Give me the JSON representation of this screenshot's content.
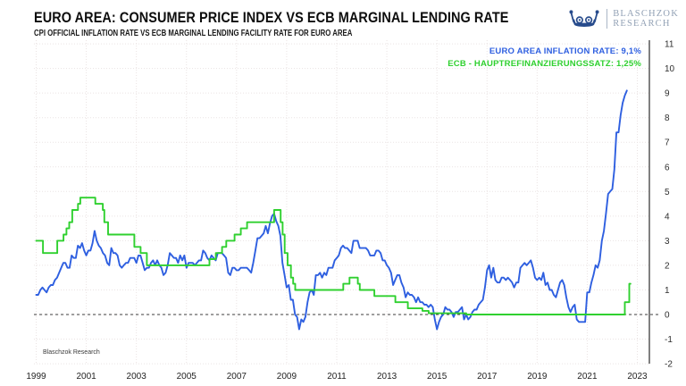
{
  "header": {
    "title": "EURO AREA: CONSUMER PRICE INDEX VS ECB MARGINAL LENDING RATE",
    "subtitle": "CPI OFFICIAL INFLATION RATE VS ECB MARGINAL LENDING FACILITY RATE FOR EURO AREA"
  },
  "logo": {
    "name_line1": "BLASCHZOK",
    "name_line2": "RESEARCH",
    "icon_color": "#274b8c"
  },
  "legend": [
    {
      "label": "EURO AREA INFLATION RATE: 9,1%",
      "color": "#2e5fe0"
    },
    {
      "label": "ECB - HAUPTREFINANZIERUNGSSATZ: 1,25%",
      "color": "#2fd02f"
    }
  ],
  "watermark": "Blaschzok Research",
  "chart_data": {
    "type": "line",
    "title": "EURO AREA: CONSUMER PRICE INDEX VS ECB MARGINAL LENDING RATE",
    "xlabel": "",
    "ylabel": "",
    "xlim": [
      1999,
      2023
    ],
    "ylim": [
      -2,
      11
    ],
    "grid": true,
    "zero_line_dashed": true,
    "legend_position": "top-right",
    "x_ticks": [
      1999,
      2001,
      2003,
      2005,
      2007,
      2009,
      2011,
      2013,
      2015,
      2017,
      2019,
      2021,
      2023
    ],
    "y_ticks": [
      -2,
      -1,
      0,
      1,
      2,
      3,
      4,
      5,
      6,
      7,
      8,
      9,
      10,
      11
    ],
    "series": [
      {
        "name": "EURO AREA INFLATION RATE",
        "current_value_label": "9,1%",
        "color": "#2e5fe0",
        "mode": "line",
        "start_year": 1999,
        "frequency": "monthly",
        "monthly_values": [
          0.8,
          0.8,
          1.0,
          1.1,
          1.0,
          0.9,
          1.1,
          1.2,
          1.2,
          1.4,
          1.5,
          1.7,
          1.9,
          2.1,
          2.1,
          1.9,
          1.9,
          2.4,
          2.3,
          2.3,
          2.8,
          2.7,
          2.9,
          2.6,
          2.4,
          2.6,
          2.6,
          2.9,
          3.4,
          3.0,
          2.8,
          2.7,
          2.5,
          2.4,
          2.1,
          2.0,
          2.7,
          2.5,
          2.5,
          2.4,
          2.0,
          1.9,
          2.0,
          2.1,
          2.1,
          2.3,
          2.3,
          2.3,
          2.1,
          2.4,
          2.4,
          2.1,
          1.8,
          1.9,
          1.9,
          2.1,
          2.2,
          2.0,
          2.2,
          2.0,
          1.9,
          1.6,
          1.7,
          2.0,
          2.5,
          2.4,
          2.3,
          2.3,
          2.1,
          2.4,
          2.2,
          2.4,
          1.9,
          2.1,
          2.1,
          2.1,
          2.0,
          2.1,
          2.2,
          2.2,
          2.6,
          2.5,
          2.3,
          2.2,
          2.4,
          2.3,
          2.2,
          2.5,
          2.5,
          2.5,
          2.4,
          2.3,
          1.7,
          1.6,
          1.9,
          1.9,
          1.8,
          1.8,
          1.9,
          1.9,
          1.9,
          1.9,
          1.8,
          1.7,
          2.1,
          2.6,
          3.1,
          3.1,
          3.2,
          3.3,
          3.6,
          3.3,
          3.7,
          4.0,
          4.1,
          3.8,
          3.6,
          3.2,
          2.1,
          1.6,
          1.1,
          1.2,
          0.6,
          0.6,
          0.0,
          -0.1,
          -0.6,
          -0.2,
          -0.3,
          -0.1,
          0.5,
          0.9,
          1.0,
          0.8,
          1.6,
          1.6,
          1.7,
          1.5,
          1.7,
          1.6,
          1.9,
          1.9,
          1.9,
          2.2,
          2.3,
          2.4,
          2.7,
          2.8,
          2.7,
          2.7,
          2.6,
          2.5,
          3.0,
          3.0,
          3.0,
          2.7,
          2.7,
          2.7,
          2.7,
          2.6,
          2.4,
          2.4,
          2.4,
          2.6,
          2.6,
          2.5,
          2.2,
          2.2,
          2.0,
          1.9,
          1.7,
          1.2,
          1.4,
          1.6,
          1.6,
          1.3,
          1.1,
          0.7,
          0.9,
          0.8,
          0.8,
          0.7,
          0.5,
          0.7,
          0.5,
          0.5,
          0.4,
          0.4,
          0.3,
          0.4,
          0.3,
          -0.2,
          -0.6,
          -0.3,
          -0.1,
          0.0,
          0.3,
          0.2,
          0.2,
          0.1,
          -0.1,
          0.1,
          0.1,
          0.2,
          0.3,
          -0.2,
          0.0,
          -0.2,
          -0.1,
          0.1,
          0.2,
          0.2,
          0.4,
          0.5,
          0.6,
          1.1,
          1.8,
          2.0,
          1.5,
          1.9,
          1.4,
          1.3,
          1.3,
          1.5,
          1.5,
          1.4,
          1.5,
          1.4,
          1.3,
          1.1,
          1.3,
          1.3,
          1.9,
          2.0,
          2.1,
          2.0,
          2.1,
          2.2,
          1.9,
          1.5,
          1.4,
          1.5,
          1.4,
          1.7,
          1.2,
          1.3,
          1.0,
          1.0,
          0.8,
          0.7,
          1.0,
          1.3,
          1.4,
          1.2,
          0.7,
          0.3,
          0.1,
          0.3,
          0.4,
          -0.2,
          -0.3,
          -0.3,
          -0.3,
          -0.3,
          0.9,
          0.9,
          1.3,
          1.6,
          2.0,
          1.9,
          2.2,
          3.0,
          3.4,
          4.1,
          4.9,
          5.0,
          5.1,
          5.9,
          7.4,
          7.4,
          8.1,
          8.6,
          8.9,
          9.1
        ]
      },
      {
        "name": "ECB - HAUPTREFINANZIERUNGSSATZ",
        "current_value_label": "1,25%",
        "color": "#2fd02f",
        "mode": "step",
        "points": [
          [
            1999.0,
            3.0
          ],
          [
            1999.27,
            2.5
          ],
          [
            1999.84,
            3.0
          ],
          [
            2000.09,
            3.25
          ],
          [
            2000.21,
            3.5
          ],
          [
            2000.32,
            3.75
          ],
          [
            2000.44,
            4.25
          ],
          [
            2000.67,
            4.5
          ],
          [
            2000.76,
            4.75
          ],
          [
            2001.36,
            4.5
          ],
          [
            2001.66,
            4.25
          ],
          [
            2001.72,
            3.75
          ],
          [
            2001.87,
            3.25
          ],
          [
            2002.92,
            2.75
          ],
          [
            2003.17,
            2.5
          ],
          [
            2003.42,
            2.0
          ],
          [
            2005.92,
            2.25
          ],
          [
            2006.17,
            2.5
          ],
          [
            2006.42,
            2.75
          ],
          [
            2006.59,
            3.0
          ],
          [
            2006.92,
            3.25
          ],
          [
            2007.17,
            3.5
          ],
          [
            2007.42,
            3.75
          ],
          [
            2008.5,
            4.25
          ],
          [
            2008.76,
            3.75
          ],
          [
            2008.84,
            3.25
          ],
          [
            2008.92,
            2.5
          ],
          [
            2009.04,
            2.0
          ],
          [
            2009.17,
            1.5
          ],
          [
            2009.26,
            1.25
          ],
          [
            2009.34,
            1.0
          ],
          [
            2011.26,
            1.25
          ],
          [
            2011.51,
            1.5
          ],
          [
            2011.84,
            1.25
          ],
          [
            2011.92,
            1.0
          ],
          [
            2012.5,
            0.75
          ],
          [
            2013.34,
            0.5
          ],
          [
            2013.84,
            0.25
          ],
          [
            2014.42,
            0.15
          ],
          [
            2014.67,
            0.05
          ],
          [
            2016.17,
            0.0
          ],
          [
            2022.5,
            0.5
          ],
          [
            2022.68,
            1.25
          ],
          [
            2022.73,
            1.25
          ]
        ]
      }
    ]
  }
}
